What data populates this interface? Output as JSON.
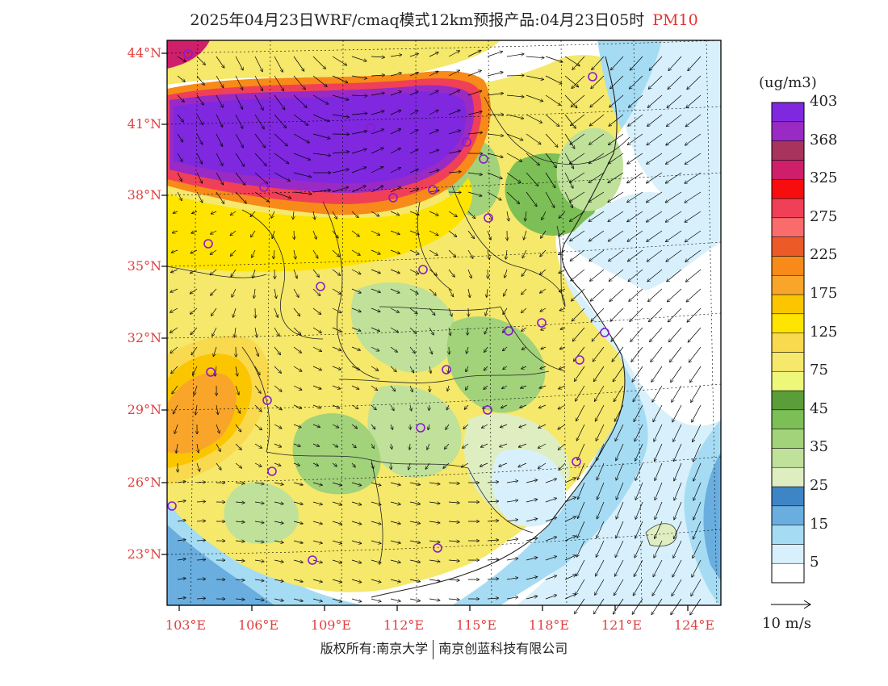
{
  "header": {
    "title": "2025年04月23日WRF/cmaq模式12km预报产品:04月23日05时",
    "pollutant": "PM10"
  },
  "colorbar": {
    "unit": "(ug/m3)",
    "colors": [
      "#ffffff",
      "#d7f0fb",
      "#a6dcf3",
      "#6aaedf",
      "#3e85c6",
      "#dfeec0",
      "#bfe19a",
      "#a2d27a",
      "#7cbf56",
      "#5a9e3a",
      "#eff77a",
      "#f5e86a",
      "#f9d94e",
      "#ffe400",
      "#fbc600",
      "#f8a52a",
      "#f78a18",
      "#ec5a28",
      "#fa6b6b",
      "#f04057",
      "#f80d0e",
      "#cf1f6b",
      "#a8345e",
      "#9a2ac4",
      "#7f28e0"
    ],
    "labels": [
      "5",
      "15",
      "25",
      "35",
      "45",
      "75",
      "125",
      "175",
      "225",
      "275",
      "325",
      "368",
      "403"
    ]
  },
  "axes": {
    "lat_labels": [
      "44°N",
      "41°N",
      "38°N",
      "35°N",
      "32°N",
      "29°N",
      "26°N",
      "23°N"
    ],
    "lon_labels": [
      "103°E",
      "106°E",
      "109°E",
      "112°E",
      "115°E",
      "118°E",
      "121°E",
      "124°E"
    ]
  },
  "vector_legend": {
    "label": "10 m/s"
  },
  "footer": {
    "left": "版权所有:南京大学",
    "right": "南京创蓝科技有限公司"
  }
}
